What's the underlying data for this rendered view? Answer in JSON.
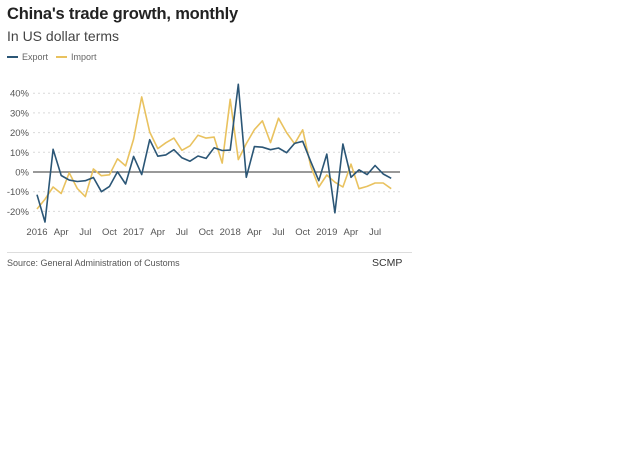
{
  "chart_data": {
    "type": "line",
    "title": "China's trade growth, monthly",
    "subtitle": "In US dollar terms",
    "xlabel": "",
    "ylabel": "",
    "ylim": [
      -25,
      45
    ],
    "yticks": [
      40,
      30,
      20,
      10,
      0,
      -10,
      -20
    ],
    "ytick_labels": [
      "40%",
      "30%",
      "20%",
      "10%",
      "0%",
      "-10%",
      "-20%"
    ],
    "xtick_labels": [
      {
        "label": "2016",
        "index": 0
      },
      {
        "label": "Apr",
        "index": 3
      },
      {
        "label": "Jul",
        "index": 6
      },
      {
        "label": "Oct",
        "index": 9
      },
      {
        "label": "2017",
        "index": 12
      },
      {
        "label": "Apr",
        "index": 15
      },
      {
        "label": "Jul",
        "index": 18
      },
      {
        "label": "Oct",
        "index": 21
      },
      {
        "label": "2018",
        "index": 24
      },
      {
        "label": "Apr",
        "index": 27
      },
      {
        "label": "Jul",
        "index": 30
      },
      {
        "label": "Oct",
        "index": 33
      },
      {
        "label": "2019",
        "index": 36
      },
      {
        "label": "Apr",
        "index": 39
      },
      {
        "label": "Jul",
        "index": 42
      }
    ],
    "x": [
      "2016-01",
      "2016-02",
      "2016-03",
      "2016-04",
      "2016-05",
      "2016-06",
      "2016-07",
      "2016-08",
      "2016-09",
      "2016-10",
      "2016-11",
      "2016-12",
      "2017-01",
      "2017-02",
      "2017-03",
      "2017-04",
      "2017-05",
      "2017-06",
      "2017-07",
      "2017-08",
      "2017-09",
      "2017-10",
      "2017-11",
      "2017-12",
      "2018-01",
      "2018-02",
      "2018-03",
      "2018-04",
      "2018-05",
      "2018-06",
      "2018-07",
      "2018-08",
      "2018-09",
      "2018-10",
      "2018-11",
      "2018-12",
      "2019-01",
      "2019-02",
      "2019-03",
      "2019-04",
      "2019-05",
      "2019-06",
      "2019-07",
      "2019-08",
      "2019-09"
    ],
    "series": [
      {
        "name": "Export",
        "color": "#2b5676",
        "values": [
          -11.5,
          -25.4,
          11.5,
          -1.8,
          -4.1,
          -4.8,
          -4.4,
          -2.8,
          -10.0,
          -7.3,
          0.1,
          -6.1,
          7.9,
          -1.3,
          16.4,
          8.0,
          8.7,
          11.3,
          7.2,
          5.5,
          8.1,
          6.9,
          12.3,
          10.9,
          11.1,
          44.5,
          -2.7,
          12.9,
          12.6,
          11.3,
          12.2,
          9.8,
          14.5,
          15.6,
          5.4,
          -4.4,
          9.1,
          -20.7,
          14.2,
          -2.7,
          1.1,
          -1.3,
          3.3,
          -1.0,
          -3.2
        ]
      },
      {
        "name": "Import",
        "color": "#e9c25f",
        "values": [
          -18.8,
          -13.8,
          -7.6,
          -10.9,
          -0.4,
          -8.4,
          -12.5,
          1.5,
          -1.9,
          -1.4,
          6.7,
          3.1,
          16.7,
          38.1,
          20.3,
          11.9,
          14.8,
          17.2,
          11.0,
          13.3,
          18.7,
          17.2,
          17.7,
          4.5,
          36.9,
          6.3,
          14.4,
          21.5,
          26.0,
          14.9,
          27.3,
          20.0,
          14.3,
          21.4,
          3.0,
          -7.6,
          -1.5,
          -5.2,
          -7.6,
          4.0,
          -8.5,
          -7.3,
          -5.6,
          -5.6,
          -8.5
        ]
      }
    ],
    "grid": true,
    "legend": "top-left"
  },
  "header": {
    "title": "China's trade growth, monthly",
    "subtitle": "In US dollar terms"
  },
  "legend": {
    "items": [
      {
        "label": "Export",
        "color": "#2b5676"
      },
      {
        "label": "Import",
        "color": "#e9c25f"
      }
    ]
  },
  "footer": {
    "source": "Source: General Administration of Customs",
    "brand": "SCMP"
  }
}
